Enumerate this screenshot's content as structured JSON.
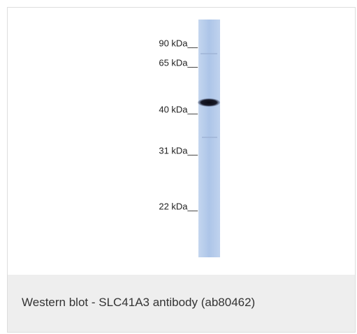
{
  "figure": {
    "markers": [
      "90 kDa__",
      "65 kDa__",
      "40 kDa__",
      "31 kDa__",
      "22 kDa__"
    ],
    "caption": "Western blot - SLC41A3 antibody (ab80462)"
  }
}
